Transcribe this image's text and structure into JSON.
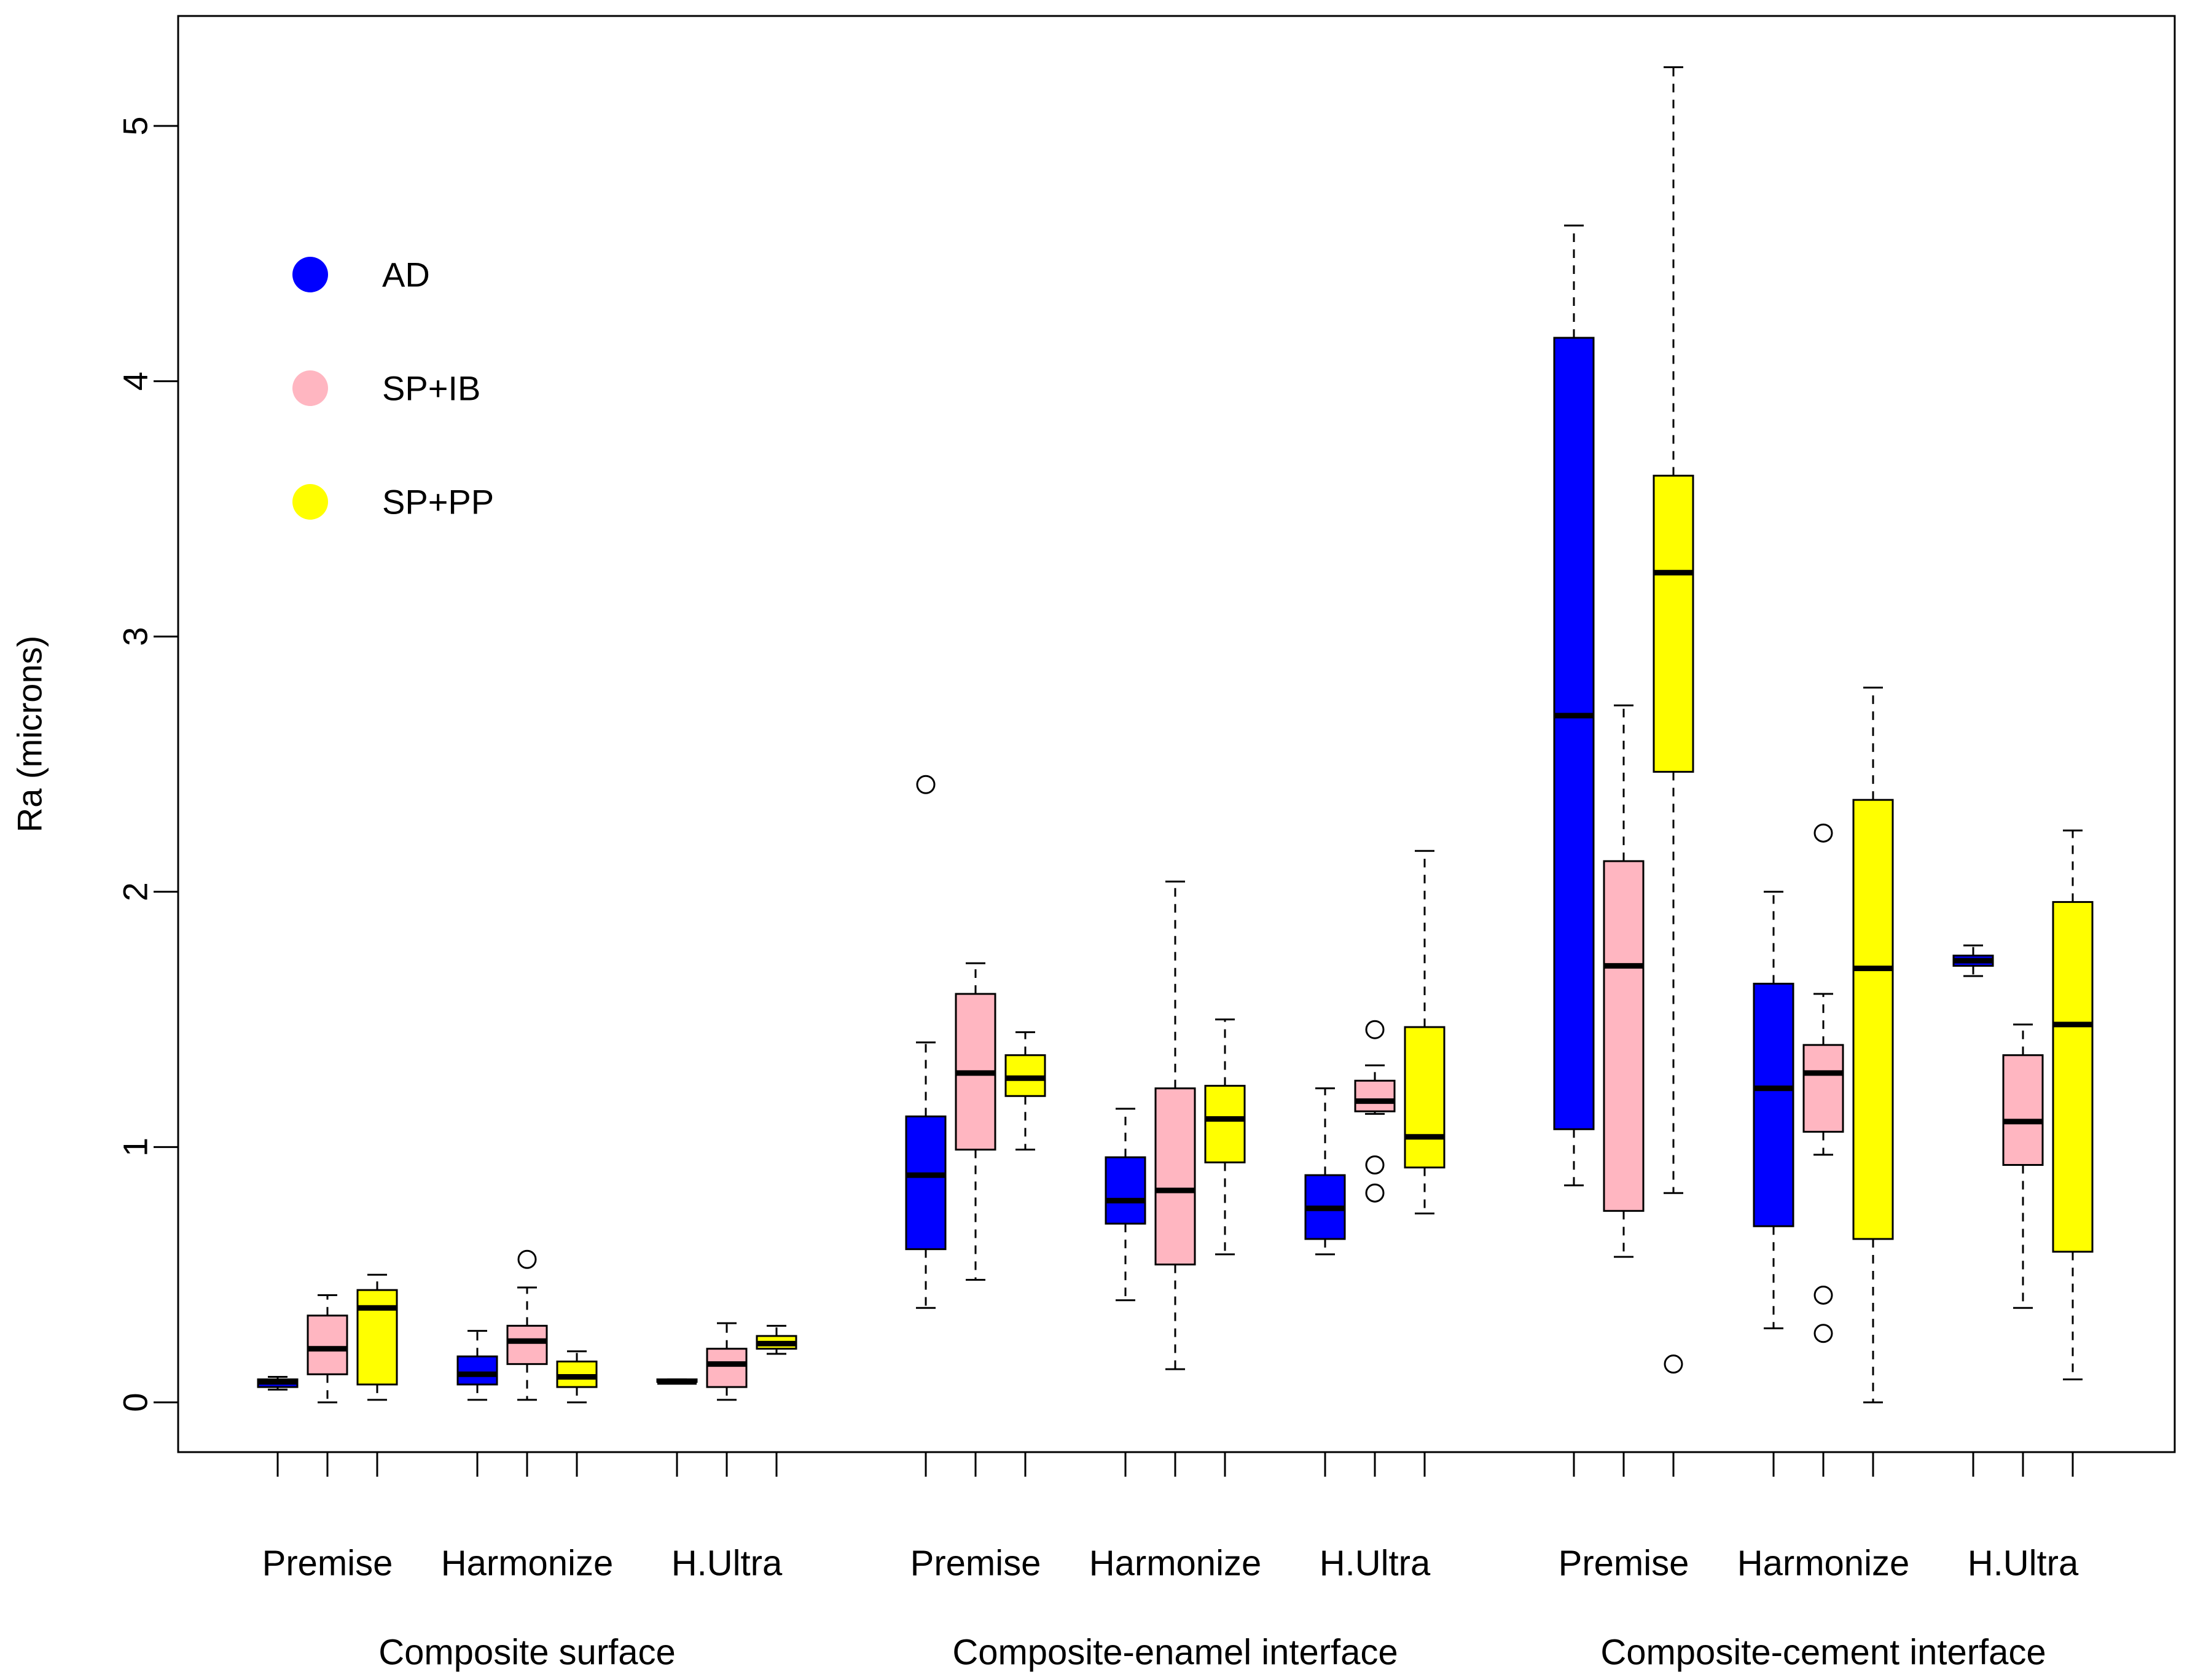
{
  "chart_data": {
    "type": "boxplot",
    "title": "",
    "xlabel": "",
    "ylabel": "Ra (microns)",
    "ylim": [
      -0.2,
      5.45
    ],
    "yticks": [
      0,
      1,
      2,
      3,
      4,
      5
    ],
    "ytick_labels": [
      "0",
      "1",
      "2",
      "3",
      "4",
      "5"
    ],
    "grid": false,
    "legend_position": "top-left",
    "legend": [
      {
        "name": "AD",
        "color": "#0000ff"
      },
      {
        "name": "SP+IB",
        "color": "#ffb6c1"
      },
      {
        "name": "SP+PP",
        "color": "#ffff00"
      }
    ],
    "groups": [
      {
        "label": "Composite surface",
        "composites": [
          {
            "label": "Premise",
            "boxes": [
              {
                "series": "AD",
                "whisker_low": 0.05,
                "q1": 0.06,
                "median": 0.08,
                "q3": 0.09,
                "whisker_high": 0.1,
                "outliers": []
              },
              {
                "series": "SP+IB",
                "whisker_low": 0.0,
                "q1": 0.11,
                "median": 0.21,
                "q3": 0.34,
                "whisker_high": 0.42,
                "outliers": []
              },
              {
                "series": "SP+PP",
                "whisker_low": 0.01,
                "q1": 0.07,
                "median": 0.37,
                "q3": 0.44,
                "whisker_high": 0.5,
                "outliers": []
              }
            ]
          },
          {
            "label": "Harmonize",
            "boxes": [
              {
                "series": "AD",
                "whisker_low": 0.01,
                "q1": 0.07,
                "median": 0.11,
                "q3": 0.18,
                "whisker_high": 0.28,
                "outliers": []
              },
              {
                "series": "SP+IB",
                "whisker_low": 0.01,
                "q1": 0.15,
                "median": 0.24,
                "q3": 0.3,
                "whisker_high": 0.45,
                "outliers": [
                  0.56
                ]
              },
              {
                "series": "SP+PP",
                "whisker_low": 0.0,
                "q1": 0.06,
                "median": 0.1,
                "q3": 0.16,
                "whisker_high": 0.2,
                "outliers": []
              }
            ]
          },
          {
            "label": "H.Ultra",
            "boxes": [
              {
                "series": "AD",
                "whisker_low": 0.08,
                "q1": 0.08,
                "median": 0.08,
                "q3": 0.09,
                "whisker_high": 0.09,
                "outliers": []
              },
              {
                "series": "SP+IB",
                "whisker_low": 0.01,
                "q1": 0.06,
                "median": 0.15,
                "q3": 0.21,
                "whisker_high": 0.31,
                "outliers": []
              },
              {
                "series": "SP+PP",
                "whisker_low": 0.19,
                "q1": 0.21,
                "median": 0.23,
                "q3": 0.26,
                "whisker_high": 0.3,
                "outliers": []
              }
            ]
          }
        ]
      },
      {
        "label": "Composite-enamel interface",
        "composites": [
          {
            "label": "Premise",
            "boxes": [
              {
                "series": "AD",
                "whisker_low": 0.37,
                "q1": 0.6,
                "median": 0.89,
                "q3": 1.12,
                "whisker_high": 1.41,
                "outliers": [
                  2.42
                ]
              },
              {
                "series": "SP+IB",
                "whisker_low": 0.48,
                "q1": 0.99,
                "median": 1.29,
                "q3": 1.6,
                "whisker_high": 1.72,
                "outliers": []
              },
              {
                "series": "SP+PP",
                "whisker_low": 0.99,
                "q1": 1.2,
                "median": 1.27,
                "q3": 1.36,
                "whisker_high": 1.45,
                "outliers": []
              }
            ]
          },
          {
            "label": "Harmonize",
            "boxes": [
              {
                "series": "AD",
                "whisker_low": 0.4,
                "q1": 0.7,
                "median": 0.79,
                "q3": 0.96,
                "whisker_high": 1.15,
                "outliers": []
              },
              {
                "series": "SP+IB",
                "whisker_low": 0.13,
                "q1": 0.54,
                "median": 0.83,
                "q3": 1.23,
                "whisker_high": 2.04,
                "outliers": []
              },
              {
                "series": "SP+PP",
                "whisker_low": 0.58,
                "q1": 0.94,
                "median": 1.11,
                "q3": 1.24,
                "whisker_high": 1.5,
                "outliers": []
              }
            ]
          },
          {
            "label": "H.Ultra",
            "boxes": [
              {
                "series": "AD",
                "whisker_low": 0.58,
                "q1": 0.64,
                "median": 0.76,
                "q3": 0.89,
                "whisker_high": 1.23,
                "outliers": []
              },
              {
                "series": "SP+IB",
                "whisker_low": 1.13,
                "q1": 1.14,
                "median": 1.18,
                "q3": 1.26,
                "whisker_high": 1.32,
                "outliers": [
                  1.46,
                  0.93,
                  0.82
                ]
              },
              {
                "series": "SP+PP",
                "whisker_low": 0.74,
                "q1": 0.92,
                "median": 1.04,
                "q3": 1.47,
                "whisker_high": 2.16,
                "outliers": []
              }
            ]
          }
        ]
      },
      {
        "label": "Composite-cement interface",
        "composites": [
          {
            "label": "Premise",
            "boxes": [
              {
                "series": "AD",
                "whisker_low": 0.85,
                "q1": 1.07,
                "median": 2.69,
                "q3": 4.17,
                "whisker_high": 4.61,
                "outliers": []
              },
              {
                "series": "SP+IB",
                "whisker_low": 0.57,
                "q1": 0.75,
                "median": 1.71,
                "q3": 2.12,
                "whisker_high": 2.73,
                "outliers": []
              },
              {
                "series": "SP+PP",
                "whisker_low": 0.82,
                "q1": 2.47,
                "median": 3.25,
                "q3": 3.63,
                "whisker_high": 5.23,
                "outliers": [
                  0.15
                ]
              }
            ]
          },
          {
            "label": "Harmonize",
            "boxes": [
              {
                "series": "AD",
                "whisker_low": 0.29,
                "q1": 0.69,
                "median": 1.23,
                "q3": 1.64,
                "whisker_high": 2.0,
                "outliers": []
              },
              {
                "series": "SP+IB",
                "whisker_low": 0.97,
                "q1": 1.06,
                "median": 1.29,
                "q3": 1.4,
                "whisker_high": 1.6,
                "outliers": [
                  2.23,
                  0.42,
                  0.27
                ]
              },
              {
                "series": "SP+PP",
                "whisker_low": 0.0,
                "q1": 0.64,
                "median": 1.7,
                "q3": 2.36,
                "whisker_high": 2.8,
                "outliers": []
              }
            ]
          },
          {
            "label": "H.Ultra",
            "boxes": [
              {
                "series": "AD",
                "whisker_low": 1.67,
                "q1": 1.71,
                "median": 1.73,
                "q3": 1.75,
                "whisker_high": 1.79,
                "outliers": []
              },
              {
                "series": "SP+IB",
                "whisker_low": 0.37,
                "q1": 0.93,
                "median": 1.1,
                "q3": 1.36,
                "whisker_high": 1.48,
                "outliers": []
              },
              {
                "series": "SP+PP",
                "whisker_low": 0.09,
                "q1": 0.59,
                "median": 1.48,
                "q3": 1.96,
                "whisker_high": 2.24,
                "outliers": []
              }
            ]
          }
        ]
      }
    ]
  }
}
